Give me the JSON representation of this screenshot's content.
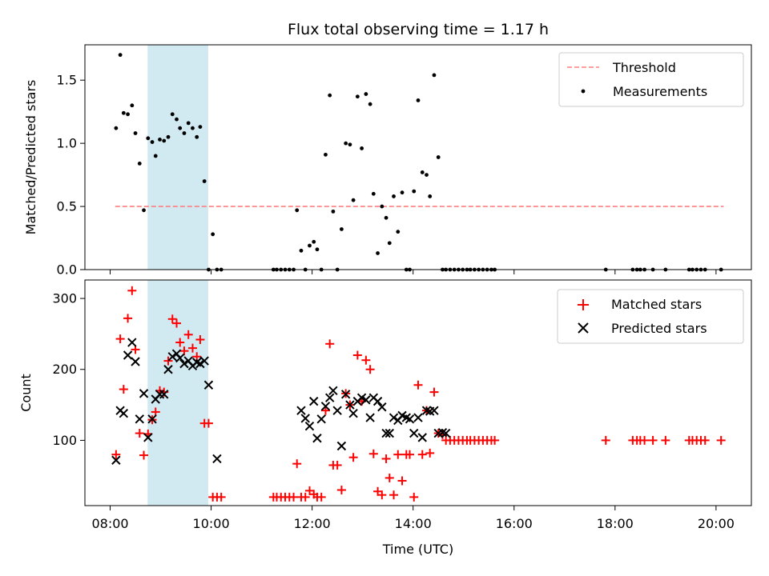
{
  "chart_data": [
    {
      "type": "scatter",
      "title": "Flux total observing time = 1.17 h",
      "xlabel": "",
      "ylabel": "Matched/Predicted stars",
      "xlim": [
        "07:30",
        "20:42"
      ],
      "ylim": [
        0,
        1.78
      ],
      "yticks": [
        0,
        0.5,
        1.0,
        1.5
      ],
      "ytick_labels": [
        "0.0",
        "0.5",
        "1.0",
        "1.5"
      ],
      "legend": "top-right",
      "shaded_interval": {
        "start": "08:45",
        "end": "09:56",
        "color": "#add8e6"
      },
      "series": [
        {
          "name": "Threshold",
          "kind": "dashed-line",
          "color": "#ff7f7f",
          "x": [
            "08:06",
            "20:09"
          ],
          "y": [
            0.5,
            0.5
          ]
        },
        {
          "name": "Measurements",
          "kind": "scatter",
          "color": "#000000",
          "x": [
            "08:07",
            "08:12",
            "08:16",
            "08:21",
            "08:26",
            "08:30",
            "08:35",
            "08:40",
            "08:45",
            "08:50",
            "08:54",
            "08:59",
            "09:04",
            "09:09",
            "09:14",
            "09:19",
            "09:23",
            "09:28",
            "09:33",
            "09:38",
            "09:43",
            "09:47",
            "09:52",
            "09:57",
            "10:02",
            "10:07",
            "10:12",
            "11:14",
            "11:18",
            "11:23",
            "11:28",
            "11:33",
            "11:38",
            "11:42",
            "11:47",
            "11:52",
            "11:57",
            "12:02",
            "12:06",
            "12:11",
            "12:16",
            "12:21",
            "12:25",
            "12:30",
            "12:35",
            "12:40",
            "12:45",
            "12:49",
            "12:54",
            "12:59",
            "13:04",
            "13:09",
            "13:13",
            "13:18",
            "13:23",
            "13:28",
            "13:32",
            "13:37",
            "13:42",
            "13:47",
            "13:52",
            "13:56",
            "14:01",
            "14:06",
            "14:11",
            "14:16",
            "14:20",
            "14:25",
            "14:30",
            "14:35",
            "14:39",
            "14:44",
            "14:49",
            "14:54",
            "14:59",
            "15:04",
            "15:08",
            "15:13",
            "15:18",
            "15:23",
            "15:28",
            "15:33",
            "15:37",
            "17:49",
            "18:21",
            "18:26",
            "18:30",
            "18:35",
            "18:45",
            "19:00",
            "19:28",
            "19:32",
            "19:37",
            "19:42",
            "19:47",
            "20:06"
          ],
          "y": [
            1.12,
            1.7,
            1.24,
            1.23,
            1.3,
            1.08,
            0.84,
            0.47,
            1.04,
            1.01,
            0.9,
            1.03,
            1.02,
            1.05,
            1.23,
            1.19,
            1.12,
            1.08,
            1.16,
            1.12,
            1.05,
            1.13,
            0.7,
            0.0,
            0.28,
            0.0,
            0.0,
            0.0,
            0.0,
            0.0,
            0.0,
            0.0,
            0.0,
            0.47,
            0.15,
            0.0,
            0.19,
            0.22,
            0.16,
            0.0,
            0.91,
            1.38,
            0.46,
            0.0,
            0.32,
            1.0,
            0.99,
            0.55,
            1.37,
            0.96,
            1.39,
            1.31,
            0.6,
            0.13,
            0.5,
            0.41,
            0.21,
            0.58,
            0.3,
            0.61,
            0.0,
            0.0,
            0.62,
            1.34,
            0.77,
            0.75,
            0.58,
            1.54,
            0.89,
            0.0,
            0.0,
            0.0,
            0.0,
            0.0,
            0.0,
            0.0,
            0.0,
            0.0,
            0.0,
            0.0,
            0.0,
            0.0,
            0.0,
            0.0,
            0.0,
            0.0,
            0.0,
            0.0,
            0.0,
            0.0,
            0.0,
            0.0,
            0.0,
            0.0,
            0.0,
            0.0
          ]
        }
      ]
    },
    {
      "type": "scatter",
      "title": "",
      "xlabel": "Time (UTC)",
      "ylabel": "Count",
      "xlim": [
        "07:30",
        "20:42"
      ],
      "ylim": [
        8,
        326
      ],
      "yticks": [
        100,
        200,
        300
      ],
      "ytick_labels": [
        "100",
        "200",
        "300"
      ],
      "xticks": [
        "08:00",
        "10:00",
        "12:00",
        "14:00",
        "16:00",
        "18:00",
        "20:00"
      ],
      "xtick_labels": [
        "08:00",
        "10:00",
        "12:00",
        "14:00",
        "16:00",
        "18:00",
        "20:00"
      ],
      "legend": "top-right",
      "shaded_interval": {
        "start": "08:45",
        "end": "09:56",
        "color": "#add8e6"
      },
      "series": [
        {
          "name": "Matched stars",
          "kind": "scatter",
          "marker": "plus",
          "color": "#ff0000",
          "x": [
            "08:07",
            "08:12",
            "08:16",
            "08:21",
            "08:26",
            "08:30",
            "08:35",
            "08:40",
            "08:45",
            "08:50",
            "08:54",
            "08:59",
            "09:04",
            "09:09",
            "09:14",
            "09:19",
            "09:23",
            "09:28",
            "09:33",
            "09:38",
            "09:43",
            "09:47",
            "09:52",
            "09:57",
            "10:02",
            "10:07",
            "10:12",
            "11:14",
            "11:18",
            "11:23",
            "11:28",
            "11:33",
            "11:38",
            "11:42",
            "11:47",
            "11:52",
            "11:57",
            "12:02",
            "12:06",
            "12:11",
            "12:16",
            "12:21",
            "12:25",
            "12:30",
            "12:35",
            "12:40",
            "12:45",
            "12:49",
            "12:54",
            "12:59",
            "13:04",
            "13:09",
            "13:13",
            "13:18",
            "13:23",
            "13:28",
            "13:32",
            "13:37",
            "13:42",
            "13:47",
            "13:52",
            "13:56",
            "14:01",
            "14:06",
            "14:11",
            "14:16",
            "14:20",
            "14:25",
            "14:30",
            "14:35",
            "14:39",
            "14:44",
            "14:49",
            "14:54",
            "14:59",
            "15:04",
            "15:08",
            "15:13",
            "15:18",
            "15:23",
            "15:28",
            "15:33",
            "15:37",
            "17:49",
            "18:21",
            "18:26",
            "18:30",
            "18:35",
            "18:45",
            "19:00",
            "19:28",
            "19:32",
            "19:37",
            "19:42",
            "19:47",
            "20:06"
          ],
          "y": [
            80,
            243,
            172,
            272,
            311,
            228,
            110,
            79,
            109,
            129,
            140,
            170,
            168,
            212,
            271,
            265,
            238,
            226,
            249,
            230,
            218,
            242,
            124,
            124,
            20,
            20,
            20,
            20,
            20,
            20,
            20,
            20,
            20,
            67,
            20,
            20,
            29,
            24,
            20,
            20,
            142,
            236,
            65,
            65,
            30,
            166,
            150,
            76,
            220,
            155,
            213,
            200,
            81,
            28,
            23,
            74,
            47,
            23,
            80,
            43,
            80,
            80,
            20,
            178,
            80,
            142,
            82,
            168,
            110,
            108,
            100,
            100,
            100,
            100,
            100,
            100,
            100,
            100,
            100,
            100,
            100,
            100,
            100,
            100,
            100,
            100,
            100,
            100,
            100,
            100,
            100,
            100,
            100,
            100,
            100,
            100
          ]
        },
        {
          "name": "Predicted stars",
          "kind": "scatter",
          "marker": "x",
          "color": "#000000",
          "x": [
            "08:07",
            "08:12",
            "08:16",
            "08:21",
            "08:26",
            "08:30",
            "08:35",
            "08:40",
            "08:45",
            "08:50",
            "08:54",
            "08:59",
            "09:04",
            "09:09",
            "09:14",
            "09:19",
            "09:23",
            "09:28",
            "09:33",
            "09:38",
            "09:43",
            "09:47",
            "09:52",
            "09:57",
            "10:07",
            "11:47",
            "11:52",
            "11:57",
            "12:02",
            "12:06",
            "12:11",
            "12:16",
            "12:21",
            "12:25",
            "12:30",
            "12:35",
            "12:40",
            "12:45",
            "12:49",
            "12:54",
            "12:59",
            "13:04",
            "13:09",
            "13:13",
            "13:18",
            "13:23",
            "13:28",
            "13:32",
            "13:37",
            "13:42",
            "13:47",
            "13:52",
            "13:56",
            "14:01",
            "14:06",
            "14:11",
            "14:16",
            "14:20",
            "14:25",
            "14:30",
            "14:35",
            "14:39"
          ],
          "y": [
            72,
            142,
            138,
            220,
            238,
            211,
            130,
            166,
            104,
            130,
            158,
            165,
            165,
            200,
            218,
            222,
            216,
            208,
            212,
            205,
            210,
            208,
            212,
            178,
            74,
            142,
            131,
            120,
            155,
            103,
            130,
            148,
            160,
            170,
            142,
            92,
            165,
            150,
            138,
            155,
            160,
            157,
            132,
            160,
            155,
            147,
            110,
            110,
            132,
            128,
            135,
            132,
            130,
            110,
            132,
            104,
            142,
            141,
            142,
            110,
            111,
            110
          ]
        }
      ]
    }
  ]
}
